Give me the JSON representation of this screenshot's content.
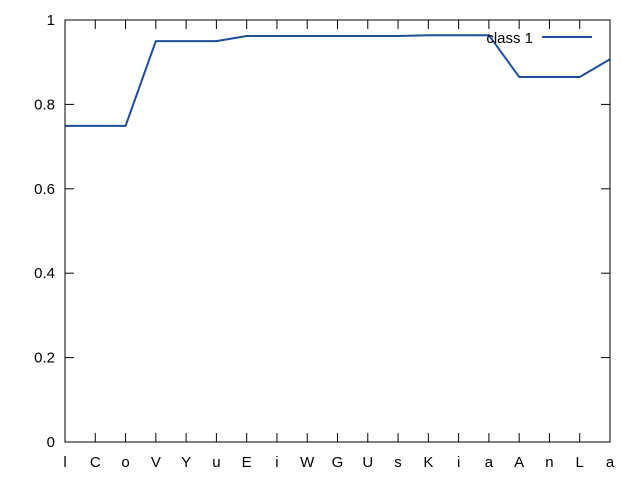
{
  "chart_data": {
    "type": "line",
    "categories": [
      "l",
      "C",
      "o",
      "V",
      "Y",
      "u",
      "E",
      "i",
      "W",
      "G",
      "U",
      "s",
      "K",
      "i",
      "a",
      "A",
      "n",
      "L",
      "a"
    ],
    "series": [
      {
        "name": "class 1",
        "color": "#1f4e99",
        "values": [
          0.749,
          0.749,
          0.749,
          0.95,
          0.95,
          0.95,
          0.962,
          0.962,
          0.962,
          0.962,
          0.962,
          0.962,
          0.964,
          0.964,
          0.964,
          0.865,
          0.865,
          0.865,
          0.907
        ]
      }
    ],
    "ylim": [
      0,
      1
    ],
    "yticks": [
      0,
      0.2,
      0.4,
      0.6,
      0.8,
      1
    ],
    "ytick_labels": [
      "0",
      "0.2",
      "0.4",
      "0.6",
      "0.8",
      "1"
    ],
    "title": "",
    "xlabel": "",
    "ylabel": "",
    "legend_position": "top-right",
    "grid": false
  }
}
